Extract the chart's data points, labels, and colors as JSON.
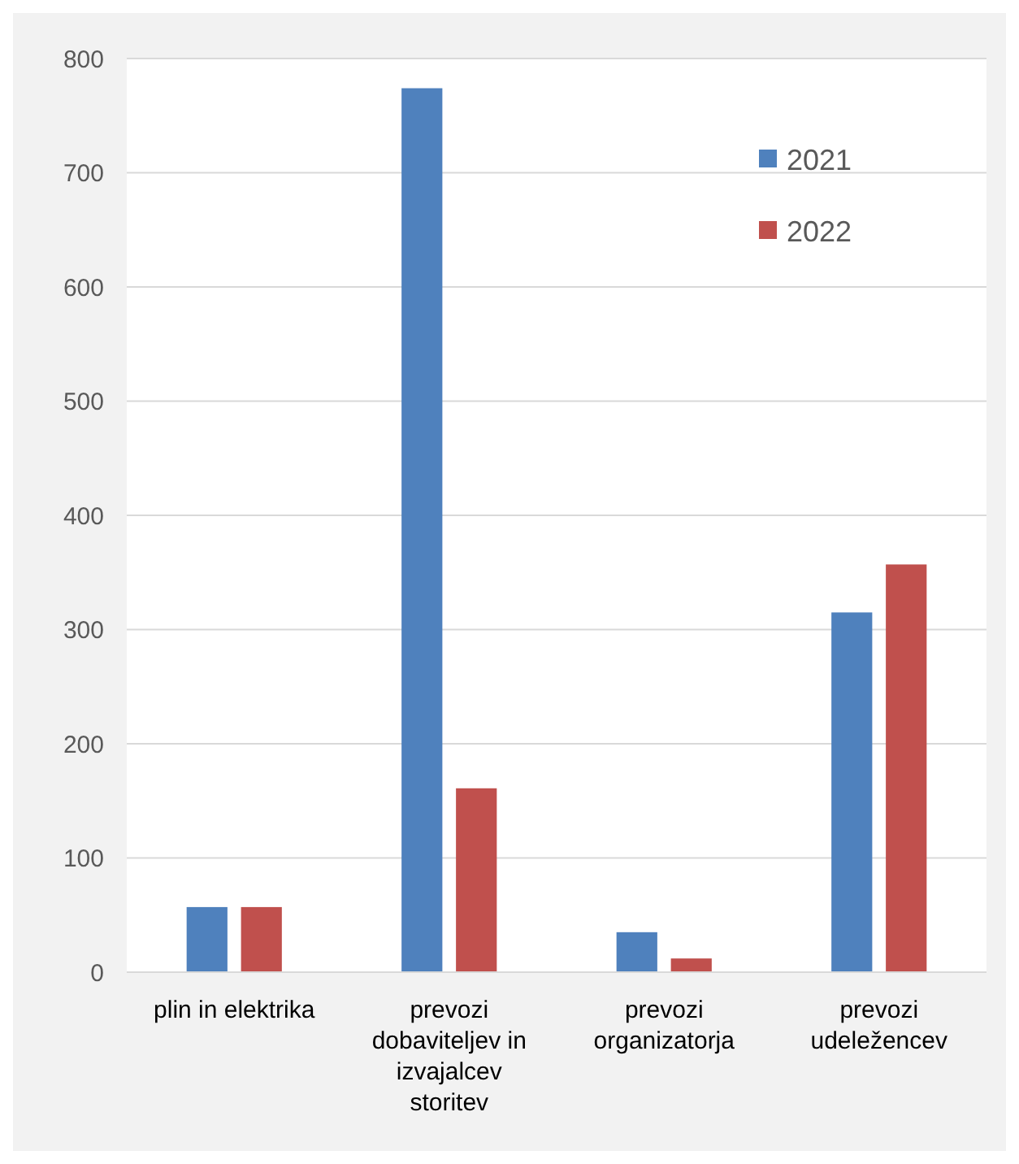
{
  "chart_data": {
    "type": "bar",
    "categories": [
      "plin in elektrika",
      "prevozi dobaviteljev in izvajalcev storitev",
      "prevozi organizatorja",
      "prevozi udeležencev"
    ],
    "series": [
      {
        "name": "2021",
        "color": "#4f81bd",
        "values": [
          57,
          774,
          35,
          315
        ]
      },
      {
        "name": "2022",
        "color": "#c0504d",
        "values": [
          57,
          161,
          12,
          357
        ]
      }
    ],
    "ylim": [
      0,
      800
    ],
    "yticks": [
      0,
      100,
      200,
      300,
      400,
      500,
      600,
      700,
      800
    ],
    "grid": "y",
    "legend": "top right"
  }
}
